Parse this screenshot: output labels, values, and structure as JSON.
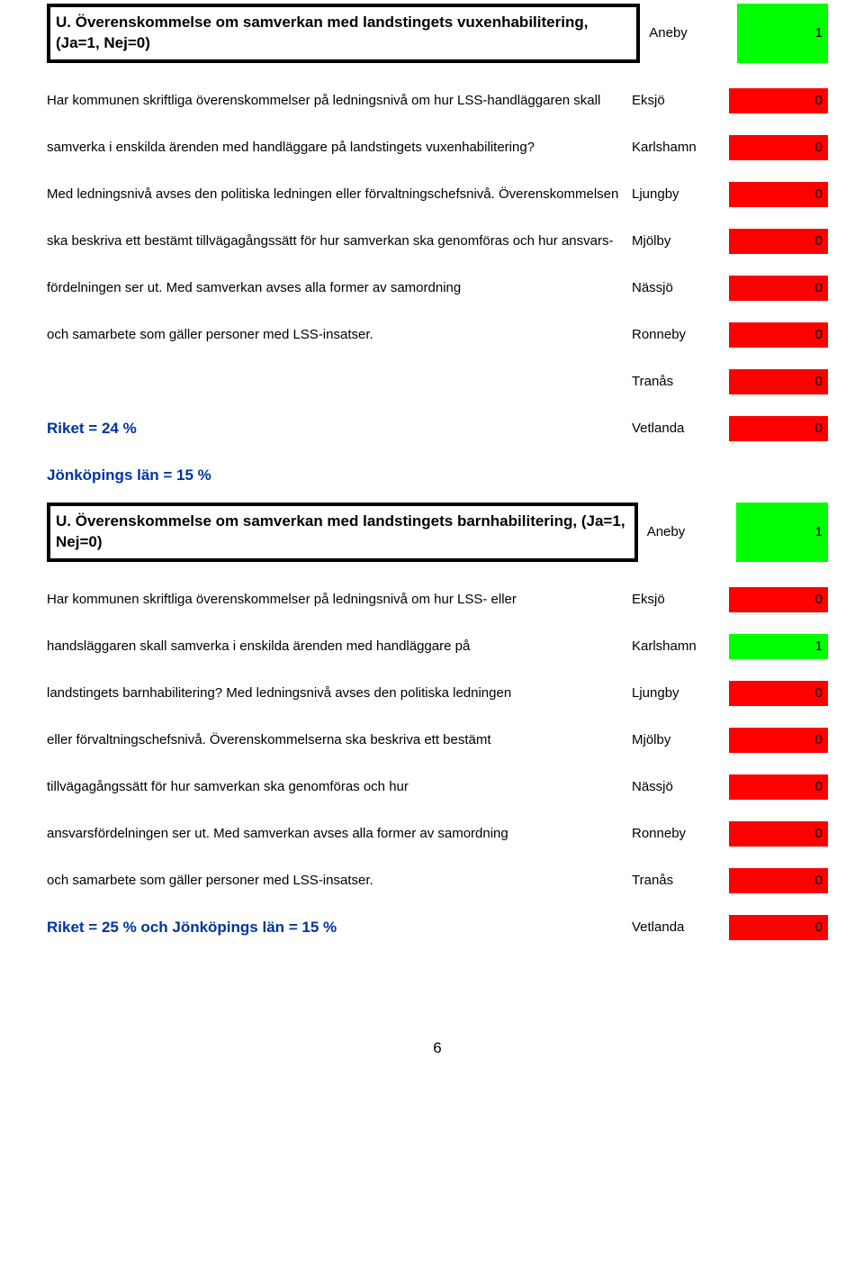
{
  "colors": {
    "green": "#00ff00",
    "red": "#ff0000",
    "white": "#ffffff",
    "blue_text": "#0033a0"
  },
  "section1": {
    "title": "U. Överenskommelse om samverkan med landstingets vuxenhabilitering, (Ja=1, Nej=0)",
    "title_name": "Aneby",
    "title_value": "1",
    "title_bg": "#00ff00",
    "rows": [
      {
        "text": "Har kommunen skriftliga överenskommelser på ledningsnivå om hur LSS-handläggaren skall",
        "name": "Eksjö",
        "value": "0",
        "bg": "#ff0000"
      },
      {
        "text": "samverka i enskilda ärenden med handläggare på landstingets vuxenhabilitering?",
        "name": "Karlshamn",
        "value": "0",
        "bg": "#ff0000"
      },
      {
        "text": "Med ledningsnivå avses den politiska ledningen eller förvaltningschefsnivå. Överenskommelsen",
        "name": "Ljungby",
        "value": "0",
        "bg": "#ff0000"
      },
      {
        "text": "ska beskriva ett bestämt tillvägagångssätt för hur samverkan ska genomföras och hur ansvars-",
        "name": "Mjölby",
        "value": "0",
        "bg": "#ff0000"
      },
      {
        "text": " fördelningen ser ut. Med samverkan avses alla former av samordning",
        "name": "Nässjö",
        "value": "0",
        "bg": "#ff0000"
      },
      {
        "text": "och samarbete som gäller personer med LSS-insatser.",
        "name": "Ronneby",
        "value": "0",
        "bg": "#ff0000"
      },
      {
        "text": "",
        "name": "Tranås",
        "value": "0",
        "bg": "#ff0000"
      }
    ],
    "riket": {
      "text": "Riket = 24 %",
      "name": "Vetlanda",
      "value": "0",
      "bg": "#ff0000"
    },
    "jonkoping": {
      "text": "Jönköpings län = 15 %",
      "name": "",
      "value": "",
      "bg": "#ffffff"
    }
  },
  "section2": {
    "title": "U. Överenskommelse om samverkan med landstingets barnhabilitering, (Ja=1, Nej=0)",
    "title_name": "Aneby",
    "title_value": "1",
    "title_bg": "#00ff00",
    "rows": [
      {
        "text": "Har kommunen skriftliga överenskommelser på ledningsnivå om hur LSS- eller",
        "name": "Eksjö",
        "value": "0",
        "bg": "#ff0000"
      },
      {
        "text": "handsläggaren skall samverka i enskilda ärenden med handläggare på",
        "name": "Karlshamn",
        "value": "1",
        "bg": "#00ff00"
      },
      {
        "text": "landstingets barnhabilitering? Med ledningsnivå avses den politiska ledningen",
        "name": "Ljungby",
        "value": "0",
        "bg": "#ff0000"
      },
      {
        "text": "eller förvaltningschefsnivå. Överenskommelserna ska beskriva ett bestämt",
        "name": "Mjölby",
        "value": "0",
        "bg": "#ff0000"
      },
      {
        "text": "tillvägagångssätt för hur samverkan ska genomföras och hur",
        "name": "Nässjö",
        "value": "0",
        "bg": "#ff0000"
      },
      {
        "text": "ansvarsfördelningen ser ut. Med samverkan avses alla former av samordning",
        "name": "Ronneby",
        "value": "0",
        "bg": "#ff0000"
      },
      {
        "text": "och samarbete som gäller personer med LSS-insatser.",
        "name": "Tranås",
        "value": "0",
        "bg": "#ff0000"
      }
    ],
    "riket": {
      "text": "Riket = 25 % och Jönköpings län = 15 %",
      "name": "Vetlanda",
      "value": "0",
      "bg": "#ff0000"
    }
  },
  "page_number": "6"
}
